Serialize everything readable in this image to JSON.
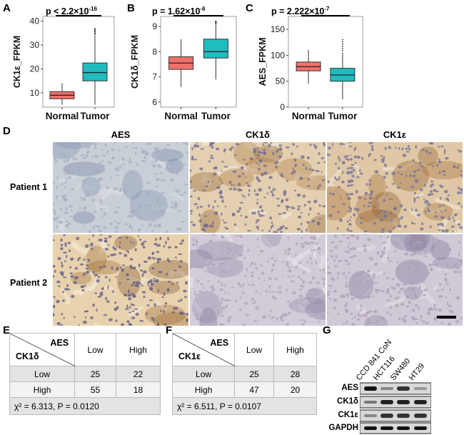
{
  "panels": {
    "A": {
      "label": "A",
      "ylabel": "CK1ε_FPKM",
      "pvalue": "p < 2.2×10",
      "pexp": "-16",
      "categories": [
        "Normal",
        "Tumor"
      ],
      "yticks": [
        "10",
        "20",
        "30",
        "40"
      ]
    },
    "B": {
      "label": "B",
      "ylabel": "CK1δ_FPKM",
      "pvalue": "p = 1.62×10",
      "pexp": "-6",
      "categories": [
        "Normal",
        "Tumor"
      ],
      "yticks": [
        "6",
        "7",
        "8",
        "9"
      ]
    },
    "C": {
      "label": "C",
      "ylabel": "AES_FPKM",
      "pvalue": "p = 2.222×10",
      "pexp": "-7",
      "categories": [
        "Normal",
        "Tumor"
      ],
      "yticks": [
        "0",
        "50",
        "100",
        "150"
      ]
    },
    "D": {
      "label": "D",
      "columns": [
        "AES",
        "CK1δ",
        "CK1ε"
      ],
      "rows": [
        "Patient 1",
        "Patient 2"
      ]
    },
    "E": {
      "label": "E",
      "col_var": "AES",
      "row_var": "CK1δ",
      "col_headers": [
        "Low",
        "High"
      ],
      "rows": [
        {
          "label": "Low",
          "values": [
            "25",
            "22"
          ]
        },
        {
          "label": "High",
          "values": [
            "55",
            "18"
          ]
        }
      ],
      "stat": "χ² = 6.313, P = 0.0120"
    },
    "F": {
      "label": "F",
      "col_var": "AES",
      "row_var": "CK1ε",
      "col_headers": [
        "Low",
        "High"
      ],
      "rows": [
        {
          "label": "Low",
          "values": [
            "25",
            "28"
          ]
        },
        {
          "label": "High",
          "values": [
            "47",
            "20"
          ]
        }
      ],
      "stat": "χ² = 6.511, P = 0.0107"
    },
    "G": {
      "label": "G",
      "lanes": [
        "CCD 841 CoN",
        "HCT116",
        "SW480",
        "HT29"
      ],
      "proteins": [
        "AES",
        "CK1δ",
        "CK1ε",
        "GAPDH"
      ]
    }
  },
  "colors": {
    "normal": "#f0716a",
    "tumor": "#20bcbf",
    "box_stroke": "#333333",
    "panel_bg": "#ffffff",
    "brown": "#a8763e",
    "blue": "#7f8fb3"
  },
  "chart_data": [
    {
      "type": "box",
      "title": "",
      "ylabel": "CK1ε_FPKM",
      "ylim": [
        4,
        42
      ],
      "series": [
        {
          "name": "Normal",
          "min": 5,
          "q1": 7.5,
          "median": 9,
          "q3": 10.5,
          "max": 14
        },
        {
          "name": "Tumor",
          "min": 5,
          "q1": 15,
          "median": 18.5,
          "q3": 22.5,
          "max": 34
        }
      ]
    },
    {
      "type": "box",
      "title": "",
      "ylabel": "CK1δ_FPKM",
      "ylim": [
        5.8,
        9.4
      ],
      "series": [
        {
          "name": "Normal",
          "min": 6.6,
          "q1": 7.3,
          "median": 7.55,
          "q3": 7.8,
          "max": 8.5
        },
        {
          "name": "Tumor",
          "min": 6.9,
          "q1": 7.75,
          "median": 8.0,
          "q3": 8.5,
          "max": 9.1
        }
      ]
    },
    {
      "type": "box",
      "title": "",
      "ylabel": "AES_FPKM",
      "ylim": [
        0,
        175
      ],
      "series": [
        {
          "name": "Normal",
          "min": 45,
          "q1": 70,
          "median": 78,
          "q3": 87,
          "max": 110
        },
        {
          "name": "Tumor",
          "min": 15,
          "q1": 50,
          "median": 62,
          "q3": 75,
          "max": 105
        }
      ]
    }
  ]
}
